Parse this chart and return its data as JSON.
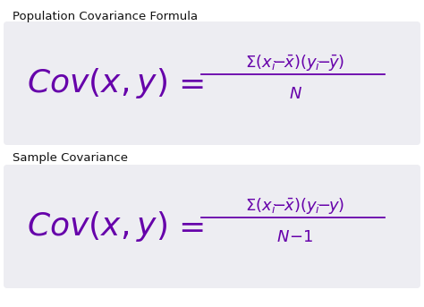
{
  "bg_color": "#ffffff",
  "box_color": "#ededf2",
  "purple_color": "#6600aa",
  "label_color": "#111111",
  "title1": "Population Covariance Formula",
  "title2": "Sample Covariance",
  "fig_width": 4.74,
  "fig_height": 3.43,
  "dpi": 100
}
